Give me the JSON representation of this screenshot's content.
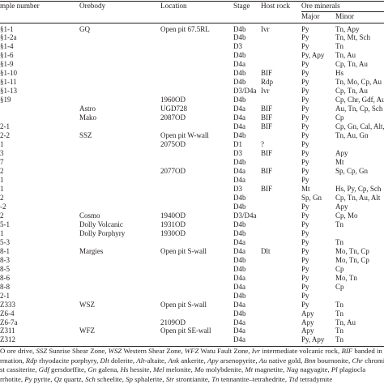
{
  "headers": {
    "sample": "mple number",
    "orebody": "Orebody",
    "location": "Location",
    "stage": "Stage",
    "host_rock": "Host rock",
    "ore_minerals": "Ore minerals",
    "major": "Major",
    "minor": "Minor"
  },
  "rows": [
    [
      "§1-1",
      "GQ",
      "Open pit 67.5RL",
      "D4b",
      "Ivr",
      "Py",
      "Tn, Apy"
    ],
    [
      "§1-2a",
      "",
      "",
      "D4b",
      "",
      "Py",
      "Tn, Mt, Sch"
    ],
    [
      "§1-4",
      "",
      "",
      "D3",
      "",
      "Py",
      "Tn"
    ],
    [
      "§1-6",
      "",
      "",
      "D4b",
      "",
      "Py, Apy",
      "Tn, Au"
    ],
    [
      "§1-9",
      "",
      "",
      "D4a",
      "",
      "Py",
      "Cp, Tn, Au"
    ],
    [
      "§1-10",
      "",
      "",
      "D4b",
      "BIF",
      "Py",
      "Hs"
    ],
    [
      "§1-11",
      "",
      "",
      "D4b",
      "Rdp",
      "Py",
      "Tn, Mo, Cp, Au"
    ],
    [
      "§1-13",
      "",
      "",
      "D3/D4a",
      "Ivr",
      "Py",
      "Cp, Tn, Au"
    ],
    [
      "§19",
      "",
      "1960OD",
      "D4b",
      "",
      "Py",
      "Cp, Chr, Gdf, Au, Mel"
    ],
    [
      "",
      "Astro",
      "UGD728",
      "D4a",
      "BIF",
      "Py",
      "Au, Tn, Cp, Sch"
    ],
    [
      "",
      "Mako",
      "2087OD",
      "D4a",
      "BIF",
      "Py",
      "Cp"
    ],
    [
      "2-1",
      "",
      "",
      "D4a",
      "BIF",
      "Py",
      "Cp, Gn, Cal, Alt, Mt"
    ],
    [
      "2-2",
      "SSZ",
      "Open pit W-wall",
      "D4b",
      "",
      "Py",
      "Tn, Au, Gn"
    ],
    [
      "1",
      "",
      "2075OD",
      "D1",
      "?",
      "Py",
      ""
    ],
    [
      "3",
      "",
      "",
      "D3",
      "BIF",
      "Py",
      "Apy"
    ],
    [
      "7",
      "",
      "",
      "D4b",
      "",
      "Py",
      "Mt"
    ],
    [
      "2",
      "",
      "2077OD",
      "D4a",
      "BIF",
      "Py",
      "Sp, Cp, Gn"
    ],
    [
      "1",
      "",
      "",
      "D4a",
      "",
      "Py",
      ""
    ],
    [
      "1",
      "",
      "",
      "D3",
      "BIF",
      "Mt",
      "Hs, Py, Cp, Sch"
    ],
    [
      "2",
      "",
      "",
      "D4b",
      "",
      "Sp, Gn",
      "Cp, Tn, Au, Alt"
    ],
    [
      "-2",
      "",
      "",
      "D4b",
      "",
      "Py",
      "Apy"
    ],
    [
      "2",
      "Cosmo",
      "1940OD",
      "D3/D4a",
      "",
      "Py",
      "Cp, Mo"
    ],
    [
      "5-1",
      "Dolly Volcanic",
      "1931OD",
      "D4b",
      "",
      "Py",
      "Tn"
    ],
    [
      "1",
      "Dolly Porphyry",
      "1930OD",
      "D4b",
      "",
      "Py",
      ""
    ],
    [
      "5-3",
      "",
      "",
      "D4a",
      "",
      "Py",
      "Tn"
    ],
    [
      "8-1",
      "Margies",
      "Open pit S-wall",
      "D4a",
      "Dlt",
      "Py",
      "Mo, Tn, Cp"
    ],
    [
      "8-3",
      "",
      "",
      "D4b",
      "",
      "Py",
      "Mo, Tn, Cp"
    ],
    [
      "8-5",
      "",
      "",
      "D4b",
      "",
      "Py",
      "Cp"
    ],
    [
      "8-6",
      "",
      "",
      "D4a",
      "",
      "Py",
      "Mo, Tn"
    ],
    [
      "8-8",
      "",
      "",
      "D4a",
      "",
      "Py",
      "Cp"
    ],
    [
      "2-1",
      "",
      "",
      "D4b",
      "",
      "Py",
      ""
    ],
    [
      "Z333",
      "WSZ",
      "Open pit S-wall",
      "D4a",
      "",
      "Py",
      "Tn"
    ],
    [
      "Z6-4",
      "",
      "",
      "D4b",
      "",
      "Apy",
      "Tn"
    ],
    [
      "Z6-7a",
      "",
      "2109OD",
      "D4a",
      "",
      "Apy",
      "Tn, Au"
    ],
    [
      "Z311",
      "WFZ",
      "Open pit SE-wall",
      "D4a",
      "",
      "Apy",
      "Tn"
    ],
    [
      "Z312",
      "",
      "",
      "D4a",
      "",
      "Py, Apy",
      "Tn"
    ]
  ],
  "footnote": {
    "line1": [
      [
        "plain",
        "O ore drive, "
      ],
      [
        "abbr",
        "SSZ"
      ],
      [
        "plain",
        " Sunrise Shear Zone, "
      ],
      [
        "abbr",
        "WSZ"
      ],
      [
        "plain",
        " Western Shear Zone, "
      ],
      [
        "abbr",
        "WFZ"
      ],
      [
        "plain",
        " Watu Fault Zone, "
      ],
      [
        "abbr",
        "Ivr"
      ],
      [
        "plain",
        " intermediate volcanic rock, "
      ],
      [
        "abbr",
        "BIF"
      ],
      [
        "plain",
        " banded in"
      ]
    ],
    "line2": [
      [
        "plain",
        "rmation, "
      ],
      [
        "abbr",
        "Rdp"
      ],
      [
        "plain",
        " rhyodacite porphyry, "
      ],
      [
        "abbr",
        "Dlt"
      ],
      [
        "plain",
        " dolerite, "
      ],
      [
        "abbr",
        "Alt"
      ],
      [
        "plain",
        "-altaite, "
      ],
      [
        "abbr",
        "Ank"
      ],
      [
        "plain",
        " ankerite, "
      ],
      [
        "abbr",
        "Apy"
      ],
      [
        "plain",
        " arsenopyrite, "
      ],
      [
        "abbr",
        "Au"
      ],
      [
        "plain",
        " native gold, "
      ],
      [
        "abbr",
        "Bnn"
      ],
      [
        "plain",
        " bournonite, "
      ],
      [
        "abbr",
        "Chr"
      ],
      [
        "plain",
        " chromite"
      ]
    ],
    "line3": [
      [
        "plain",
        "st cassiterite, "
      ],
      [
        "abbr",
        "Gdf"
      ],
      [
        "plain",
        " gersdorffite, "
      ],
      [
        "abbr",
        "Gn"
      ],
      [
        "plain",
        " galena, "
      ],
      [
        "abbr",
        "Hs"
      ],
      [
        "plain",
        " hessite, "
      ],
      [
        "abbr",
        "Mel"
      ],
      [
        "plain",
        " melonite, "
      ],
      [
        "abbr",
        "Mo"
      ],
      [
        "plain",
        " molybdenite, "
      ],
      [
        "abbr",
        "Mt"
      ],
      [
        "plain",
        " magnetite, "
      ],
      [
        "abbr",
        "Nag"
      ],
      [
        "plain",
        " nagyagite, "
      ],
      [
        "abbr",
        "Pl"
      ],
      [
        "plain",
        " plagiocla"
      ]
    ],
    "line4": [
      [
        "plain",
        "rrhotite, "
      ],
      [
        "abbr",
        "Py"
      ],
      [
        "plain",
        " pyrite, "
      ],
      [
        "abbr",
        "Qz"
      ],
      [
        "plain",
        " quartz, "
      ],
      [
        "abbr",
        "Sch"
      ],
      [
        "plain",
        " scheelite, "
      ],
      [
        "abbr",
        "Sp"
      ],
      [
        "plain",
        " sphalerite, "
      ],
      [
        "abbr",
        "Str"
      ],
      [
        "plain",
        " strontianite, "
      ],
      [
        "abbr",
        "Tn"
      ],
      [
        "plain",
        " tennantite–tetrahedrite, "
      ],
      [
        "abbr",
        "Ttd"
      ],
      [
        "plain",
        " tetradymite"
      ]
    ]
  }
}
